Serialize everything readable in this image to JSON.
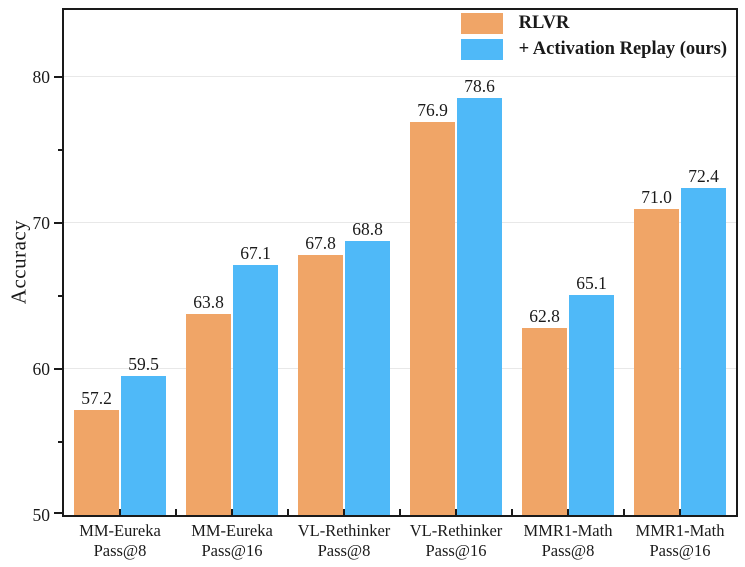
{
  "chart_data": {
    "type": "bar",
    "title": "",
    "ylabel": "Accuracy",
    "xlabel": "",
    "ylim": [
      50,
      84.6
    ],
    "yticks": [
      50,
      60,
      70,
      80
    ],
    "yticks_minor": [
      55,
      65,
      75
    ],
    "gridlines": [
      60,
      70,
      80
    ],
    "grid": "horizontal-major-only",
    "legend_position": "upper-right-inside",
    "value_label_format": "one-decimal",
    "categories": [
      [
        "MM-Eureka",
        "Pass@8"
      ],
      [
        "MM-Eureka",
        "Pass@16"
      ],
      [
        "VL-Rethinker",
        "Pass@8"
      ],
      [
        "VL-Rethinker",
        "Pass@16"
      ],
      [
        "MMR1-Math",
        "Pass@8"
      ],
      [
        "MMR1-Math",
        "Pass@16"
      ]
    ],
    "series": [
      {
        "name": "RLVR",
        "color": "#F0A567",
        "values": [
          57.2,
          63.8,
          67.8,
          76.9,
          62.8,
          71.0
        ]
      },
      {
        "name": "+ Activation Replay (ours)",
        "color": "#4FB9F8",
        "values": [
          59.5,
          67.1,
          68.8,
          78.6,
          65.1,
          72.4
        ]
      }
    ],
    "colors": {
      "axis": "#1a1a1a",
      "grid": "#e8e8e8",
      "text": "#1a1a1a",
      "background": "#ffffff"
    }
  }
}
